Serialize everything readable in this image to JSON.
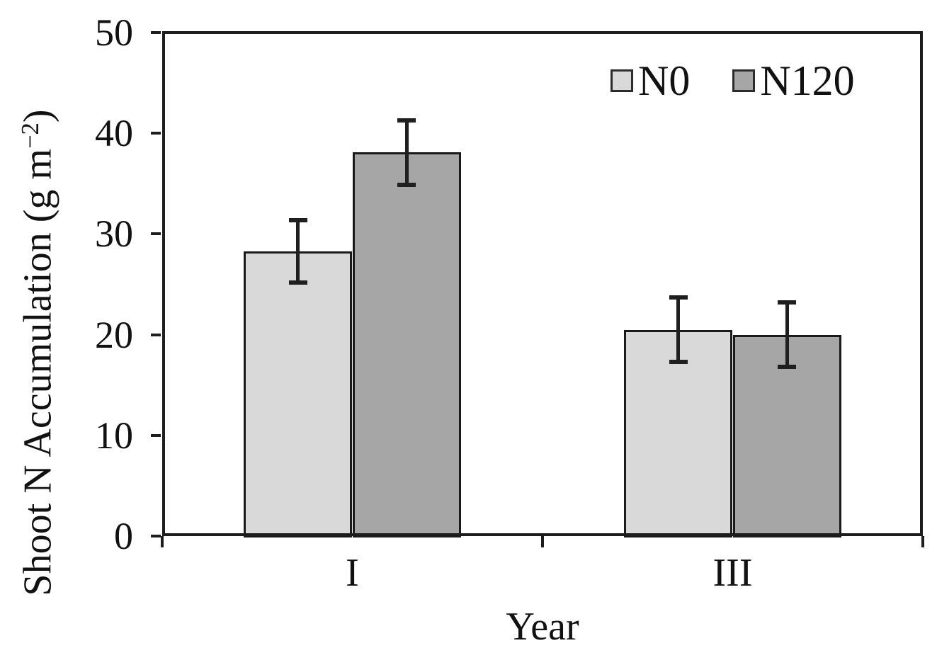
{
  "chart_data": {
    "type": "bar",
    "title": "",
    "xlabel": "Year",
    "ylabel": "Shoot N Accumulation (g m−2)",
    "ylabel_parts": {
      "prefix": "Shoot N Accumulation (g m",
      "sup": "−2",
      "suffix": ")"
    },
    "categories": [
      "I",
      "III"
    ],
    "series": [
      {
        "name": "N0",
        "color": "#d9d9d9",
        "values": [
          28.3,
          20.5
        ],
        "errors": [
          3.1,
          3.2
        ]
      },
      {
        "name": "N120",
        "color": "#a6a6a6",
        "values": [
          38.1,
          20.0
        ],
        "errors": [
          3.2,
          3.2
        ]
      }
    ],
    "ylim": [
      0,
      50
    ],
    "yticks": [
      0,
      10,
      20,
      30,
      40,
      50
    ],
    "grid": false,
    "legend_position": "top-right-inside",
    "axis_color": "#1d1d1d",
    "error_bar_color": "#1f1f1f",
    "bar_border_color": "#1a1a1a"
  }
}
